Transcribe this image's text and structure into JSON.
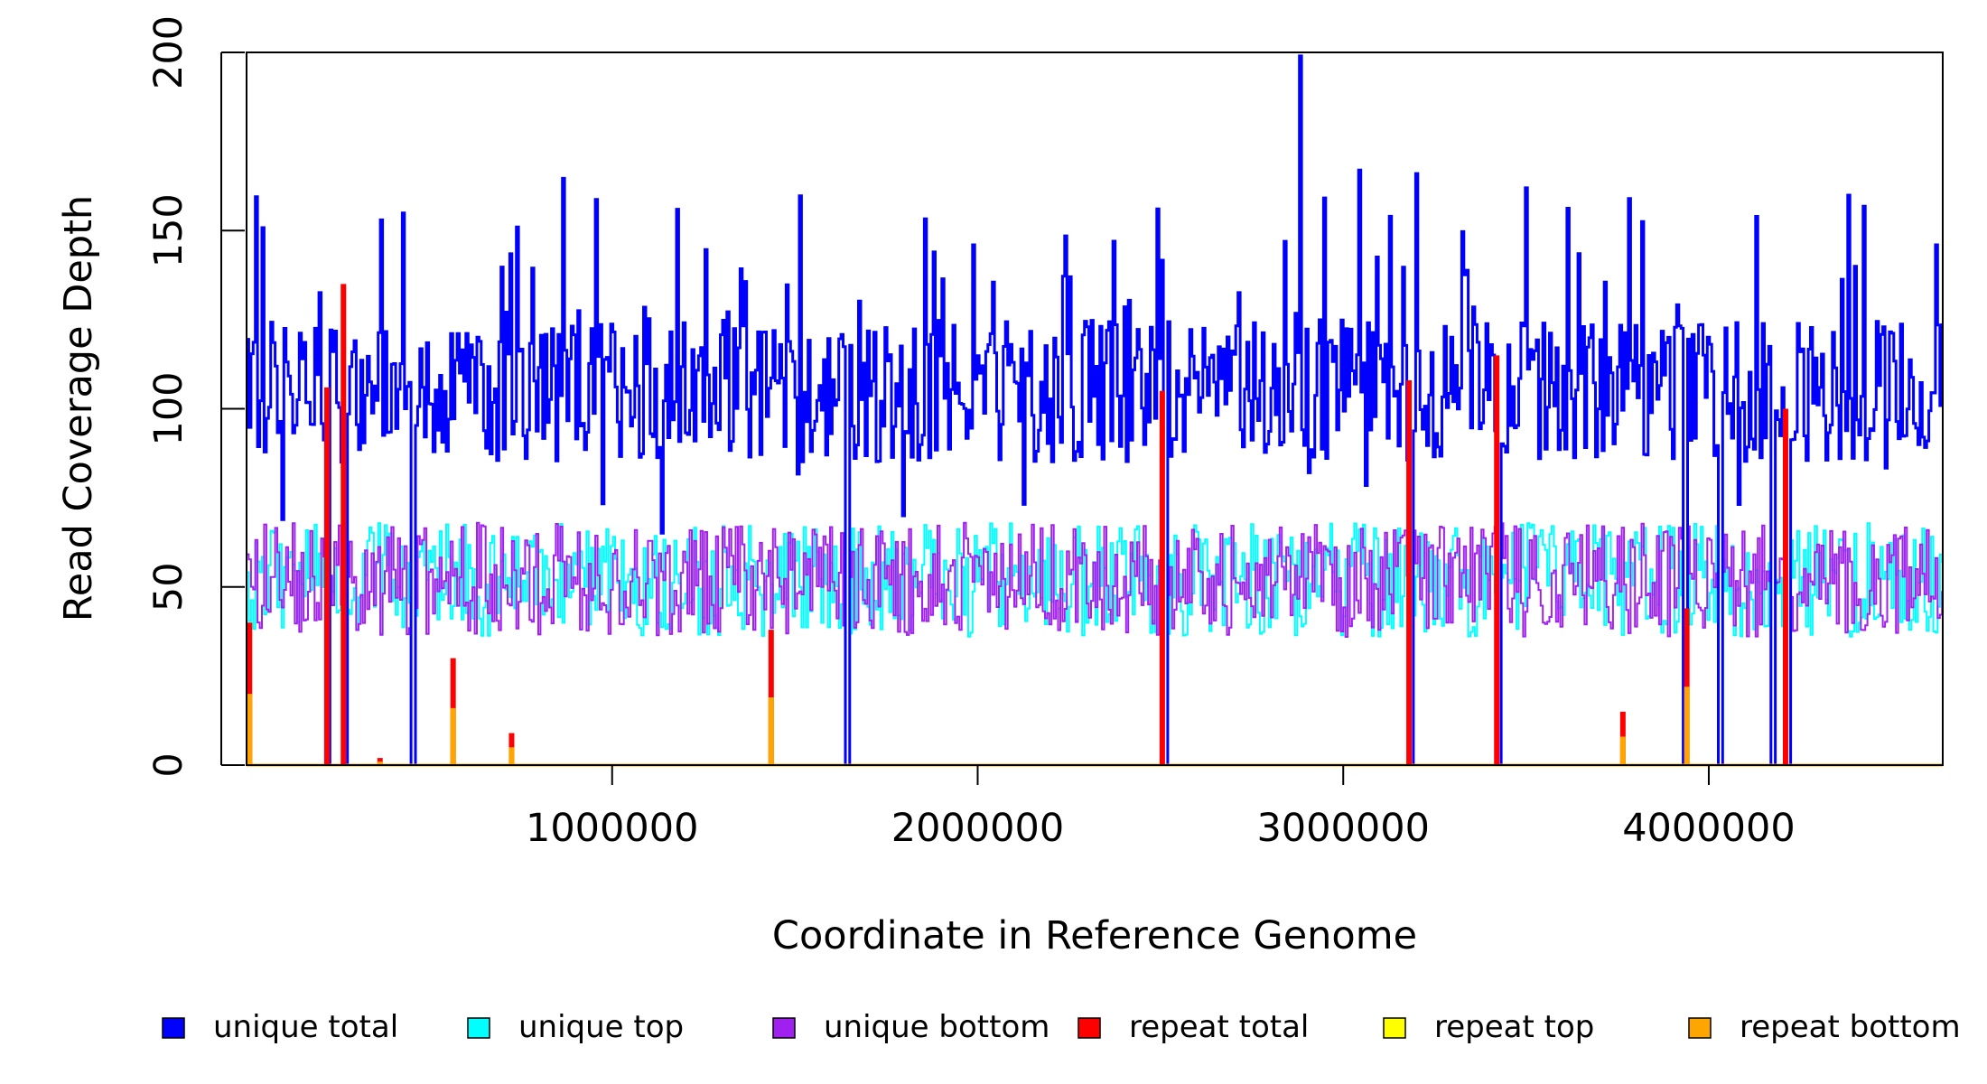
{
  "chart_data": {
    "type": "line",
    "title": "",
    "xlabel": "Coordinate in Reference Genome",
    "ylabel": "Read Coverage Depth",
    "xlim": [
      0,
      4640000
    ],
    "ylim": [
      0,
      200
    ],
    "x_ticks": [
      1000000,
      2000000,
      3000000,
      4000000
    ],
    "x_tick_labels": [
      "1000000",
      "2000000",
      "3000000",
      "4000000"
    ],
    "y_ticks": [
      0,
      50,
      100,
      150,
      200
    ],
    "y_tick_labels": [
      "0",
      "50",
      "100",
      "150",
      "200"
    ],
    "grid": false,
    "legend_position": "bottom",
    "bin_size": 6000,
    "series": [
      {
        "name": "unique total",
        "color": "#0000FF"
      },
      {
        "name": "unique top",
        "color": "#00FFFF"
      },
      {
        "name": "unique bottom",
        "color": "#A020F0"
      },
      {
        "name": "repeat total",
        "color": "#FF0000"
      },
      {
        "name": "repeat top",
        "color": "#FFFF00"
      },
      {
        "name": "repeat bottom",
        "color": "#FFA500"
      }
    ],
    "unique_total_baseline": 105,
    "unique_strand_baseline": 52,
    "unique_total_peaks": [
      {
        "x": 2885000,
        "y": 199
      },
      {
        "x": 3045000,
        "y": 167
      },
      {
        "x": 3200000,
        "y": 166
      },
      {
        "x": 3500000,
        "y": 162
      },
      {
        "x": 1180000,
        "y": 156
      },
      {
        "x": 3780000,
        "y": 159
      },
      {
        "x": 4130000,
        "y": 154
      },
      {
        "x": 370000,
        "y": 153
      },
      {
        "x": 740000,
        "y": 151
      },
      {
        "x": 4620000,
        "y": 146
      },
      {
        "x": 1990000,
        "y": 146
      },
      {
        "x": 1880000,
        "y": 144
      },
      {
        "x": 4400000,
        "y": 140
      },
      {
        "x": 2840000,
        "y": 147
      }
    ],
    "coverage_gaps": [
      {
        "x": 220000,
        "total": 0
      },
      {
        "x": 265000,
        "total": 0
      },
      {
        "x": 455000,
        "total": 0
      },
      {
        "x": 1640000,
        "total": 0
      },
      {
        "x": 2510000,
        "total": 0
      },
      {
        "x": 3185000,
        "total": 0
      },
      {
        "x": 3420000,
        "total": 0
      },
      {
        "x": 3935000,
        "total": 0
      },
      {
        "x": 4030000,
        "total": 0
      },
      {
        "x": 4170000,
        "total": 0
      },
      {
        "x": 4215000,
        "total": 0
      }
    ],
    "repeat_spikes": [
      {
        "x": 8000,
        "total": 40,
        "bottom": 20
      },
      {
        "x": 220000,
        "total": 106,
        "bottom": 0
      },
      {
        "x": 265000,
        "total": 135,
        "bottom": 0
      },
      {
        "x": 365000,
        "total": 2,
        "bottom": 1
      },
      {
        "x": 565000,
        "total": 30,
        "bottom": 16
      },
      {
        "x": 725000,
        "total": 9,
        "bottom": 5
      },
      {
        "x": 1435000,
        "total": 38,
        "bottom": 19
      },
      {
        "x": 2505000,
        "total": 105,
        "bottom": 0
      },
      {
        "x": 3180000,
        "total": 108,
        "bottom": 0
      },
      {
        "x": 3420000,
        "total": 115,
        "bottom": 0
      },
      {
        "x": 3765000,
        "total": 15,
        "bottom": 8
      },
      {
        "x": 3940000,
        "total": 44,
        "bottom": 22
      },
      {
        "x": 4210000,
        "total": 100,
        "bottom": 0
      }
    ]
  },
  "legend": {
    "items": [
      {
        "label": "unique total",
        "color": "#0000FF"
      },
      {
        "label": "unique top",
        "color": "#00FFFF"
      },
      {
        "label": "unique bottom",
        "color": "#A020F0"
      },
      {
        "label": "repeat total",
        "color": "#FF0000"
      },
      {
        "label": "repeat top",
        "color": "#FFFF00"
      },
      {
        "label": "repeat bottom",
        "color": "#FFA500"
      }
    ]
  }
}
